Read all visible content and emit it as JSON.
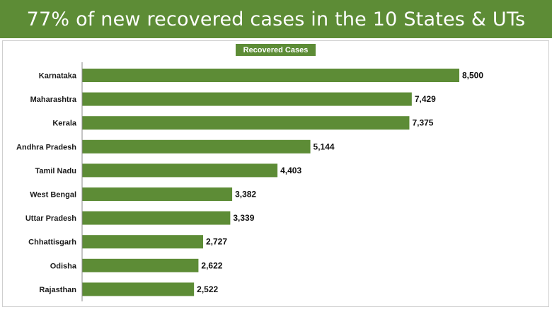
{
  "header": {
    "title": "77% of new recovered cases in the 10 States & UTs"
  },
  "colors": {
    "bar": "#5d8c36",
    "banner": "#5d8c36"
  },
  "chart_data": {
    "type": "bar",
    "orientation": "horizontal",
    "title": "77% of new recovered cases in the 10 States & UTs",
    "legend": "Recovered Cases",
    "legend_position": "top-center",
    "categories": [
      "Karnataka",
      "Maharashtra",
      "Kerala",
      "Andhra Pradesh",
      "Tamil Nadu",
      "West Bengal",
      "Uttar Pradesh",
      "Chhattisgarh",
      "Odisha",
      "Rajasthan"
    ],
    "values": [
      8500,
      7429,
      7375,
      5144,
      4403,
      3382,
      3339,
      2727,
      2622,
      2522
    ],
    "value_labels": [
      "8,500",
      "7,429",
      "7,375",
      "5,144",
      "4,403",
      "3,382",
      "3,339",
      "2,727",
      "2,622",
      "2,522"
    ],
    "xlim": [
      0,
      8500
    ],
    "grid": false
  }
}
